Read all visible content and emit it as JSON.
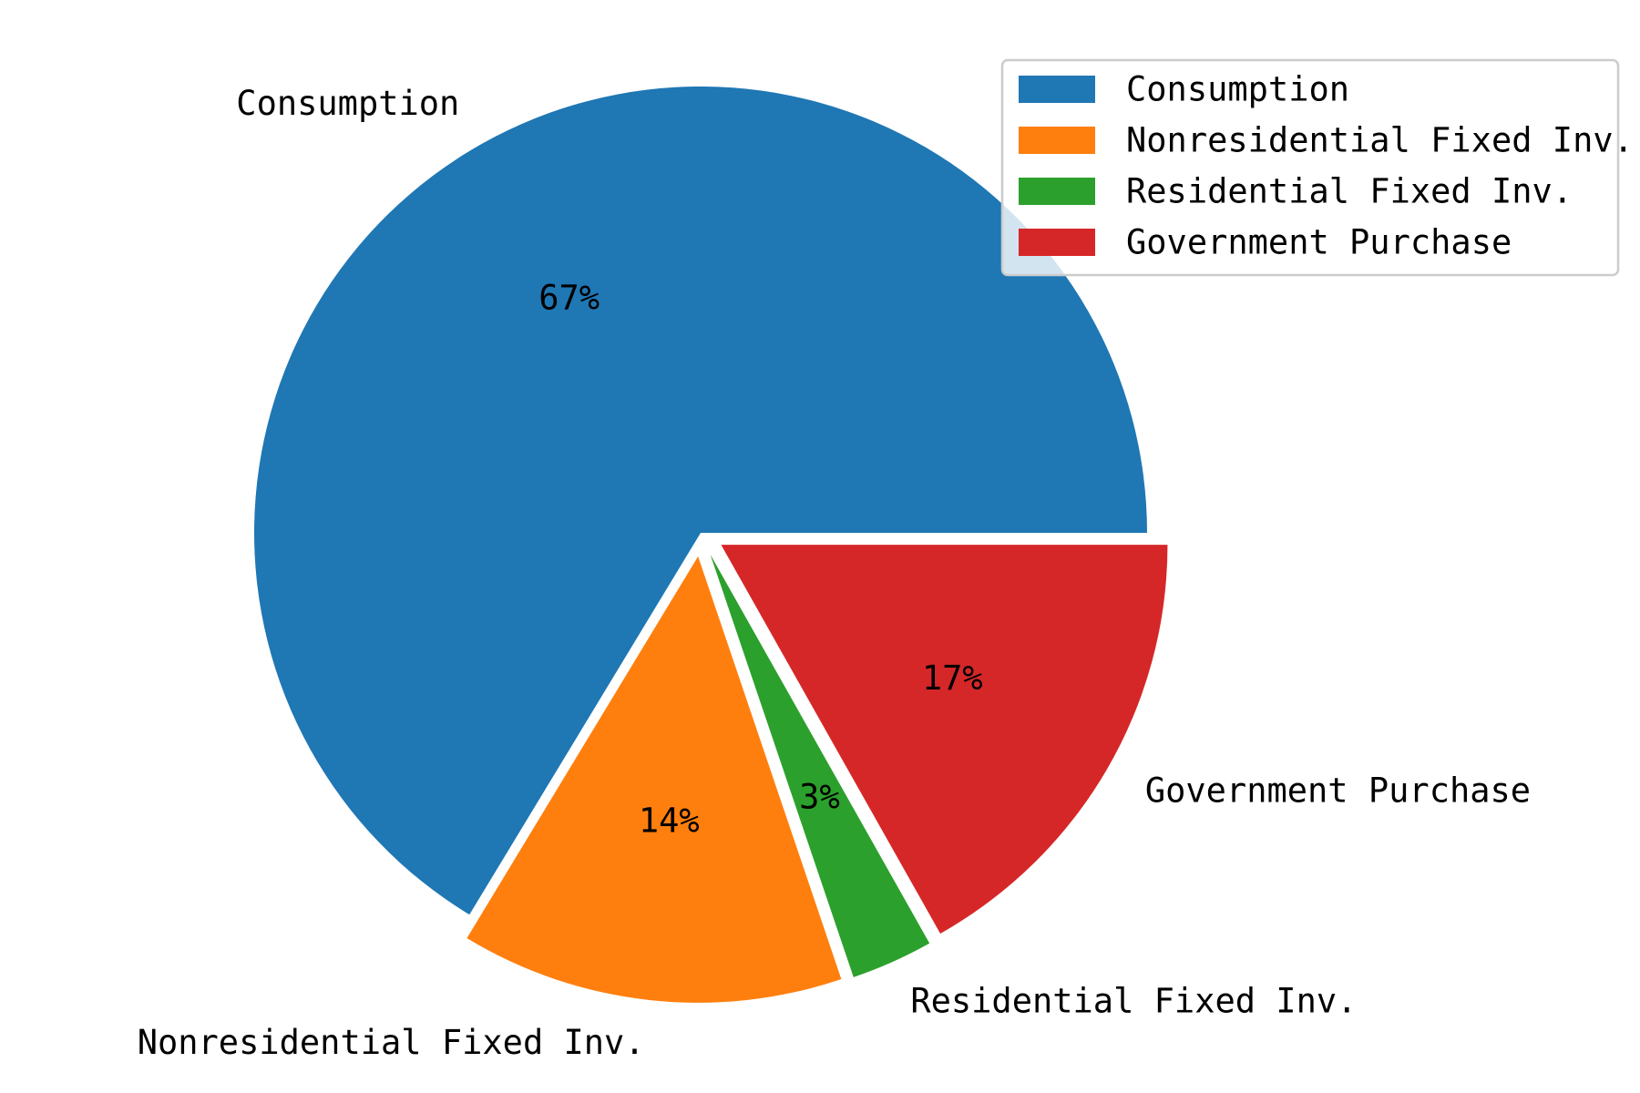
{
  "chart_data": {
    "type": "pie",
    "title": "",
    "categories": [
      "Consumption",
      "Nonresidential Fixed Inv.",
      "Residential Fixed Inv.",
      "Government Purchase"
    ],
    "values": [
      67,
      14,
      3,
      17
    ],
    "percent_labels": [
      "67%",
      "14%",
      "3%",
      "17%"
    ],
    "colors": [
      "#1f77b4",
      "#ff7f0e",
      "#2ca02c",
      "#d62728"
    ],
    "start_angle_deg": 0,
    "direction": "counterclockwise",
    "exploded": [
      "Nonresidential Fixed Inv.",
      "Residential Fixed Inv.",
      "Government Purchase"
    ],
    "legend": {
      "placement": "top-right",
      "entries": [
        "Consumption",
        "Nonresidential Fixed Inv.",
        "Residential Fixed Inv.",
        "Government Purchase"
      ]
    }
  }
}
